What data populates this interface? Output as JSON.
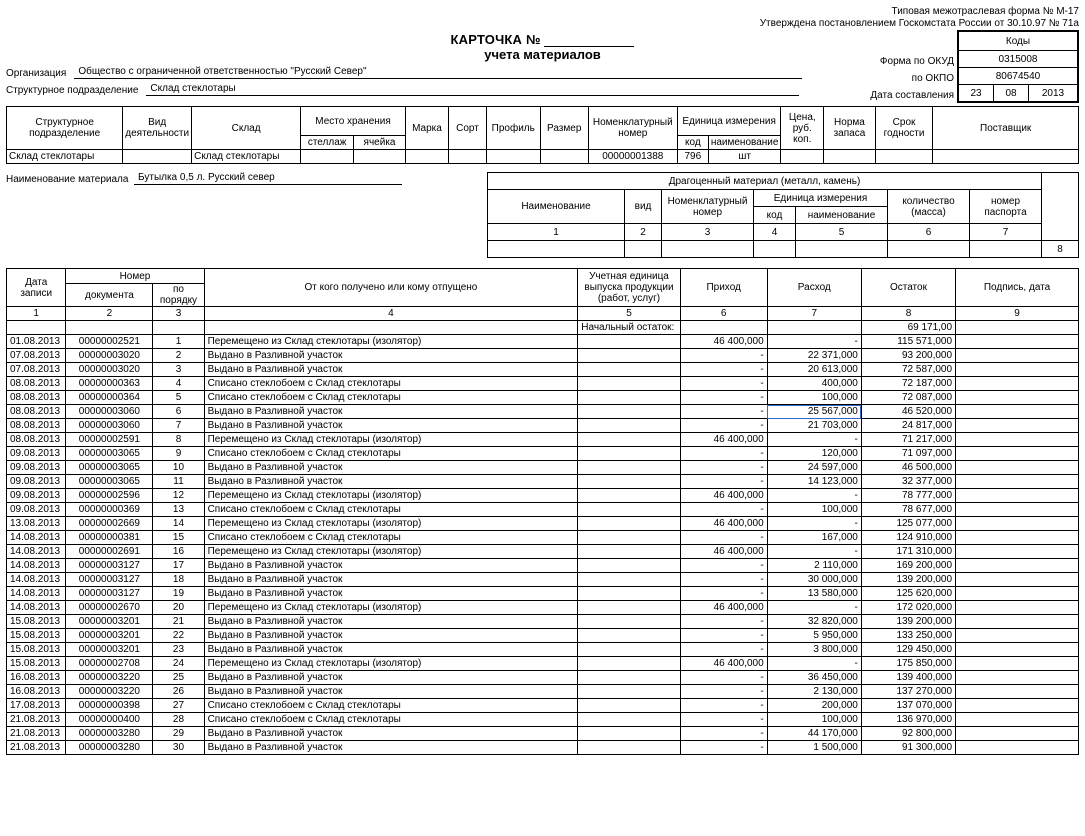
{
  "top_right": {
    "l1": "Типовая межотраслевая форма № М-17",
    "l2": "Утверждена постановлением Госкомстата России от 30.10.97 № 71а"
  },
  "title": {
    "l1a": "КАРТОЧКА №",
    "l2": "учета материалов"
  },
  "codes": {
    "hdr": "Коды",
    "okud": "0315008",
    "okpo": "80674540",
    "labels": {
      "l1": "Форма по ОКУД",
      "l2": "по ОКПО",
      "l3": "Дата составления"
    },
    "date": {
      "d": "23",
      "m": "08",
      "y": "2013"
    }
  },
  "org": {
    "label": "Организация",
    "value": "Общество с ограниченной  ответственностью  \"Русский Север\""
  },
  "struct": {
    "label": "Структурное подразделение",
    "value": "Склад стеклотары"
  },
  "t1": {
    "h": {
      "c1": "Структурное подразделение",
      "c2": "Вид деятельности",
      "c3": "Склад",
      "c4": "Место хранения",
      "c4a": "стеллаж",
      "c4b": "ячейка",
      "c5": "Марка",
      "c6": "Сорт",
      "c7": "Профиль",
      "c8": "Размер",
      "c9": "Номенклатурный номер",
      "c10": "Единица измерения",
      "c10a": "код",
      "c10b": "наименование",
      "c11": "Цена, руб. коп.",
      "c12": "Норма запаса",
      "c13": "Срок годности",
      "c14": "Поставщик"
    },
    "r": {
      "c1": "Склад стеклотары",
      "c3": "Склад стеклотары",
      "c9": "00000001388",
      "c10a": "796",
      "c10b": "шт"
    }
  },
  "mat": {
    "label": "Наименование материала",
    "value": "Бутылка 0,5 л. Русский север"
  },
  "t2": {
    "top": "Драгоценный материал (металл, камень)",
    "h1": "Наименование",
    "h2": "вид",
    "h3": "Номенклатурный номер",
    "h4": "Единица измерения",
    "h4a": "код",
    "h4b": "наименование",
    "h5": "количество (масса)",
    "h6": "номер паспорта",
    "n1": "1",
    "n2": "2",
    "n3": "3",
    "n4": "4",
    "n5": "5",
    "n6": "6",
    "n7": "7",
    "n8": "8"
  },
  "main": {
    "h": {
      "c1": "Дата записи",
      "c2": "Номер",
      "c2a": "документа",
      "c2b": "по порядку",
      "c3": "От кого получено или кому отпущено",
      "c4": "Учетная единица выпуска продукции (работ, услуг)",
      "c5": "Приход",
      "c6": "Расход",
      "c7": "Остаток",
      "c8": "Подпись, дата"
    },
    "nums": [
      "1",
      "2",
      "3",
      "4",
      "5",
      "6",
      "7",
      "8",
      "9"
    ],
    "initial": {
      "label": "Начальный остаток:",
      "ost": "69 171,00"
    },
    "rows": [
      {
        "d": "01.08.2013",
        "doc": "00000002521",
        "n": "1",
        "desc": "Перемещено из Склад стеклотары (изолятор)",
        "in": "46 400,000",
        "out": "-",
        "ost": "115 571,000"
      },
      {
        "d": "07.08.2013",
        "doc": "00000003020",
        "n": "2",
        "desc": "Выдано в Разливной участок",
        "in": "-",
        "out": "22 371,000",
        "ost": "93 200,000"
      },
      {
        "d": "07.08.2013",
        "doc": "00000003020",
        "n": "3",
        "desc": "Выдано в Разливной участок",
        "in": "-",
        "out": "20 613,000",
        "ost": "72 587,000"
      },
      {
        "d": "08.08.2013",
        "doc": "00000000363",
        "n": "4",
        "desc": "Списано стеклобоем с Склад стеклотары",
        "in": "-",
        "out": "400,000",
        "ost": "72 187,000"
      },
      {
        "d": "08.08.2013",
        "doc": "00000000364",
        "n": "5",
        "desc": "Списано стеклобоем с Склад стеклотары",
        "in": "-",
        "out": "100,000",
        "ost": "72 087,000"
      },
      {
        "d": "08.08.2013",
        "doc": "00000003060",
        "n": "6",
        "desc": "Выдано в Разливной участок",
        "in": "-",
        "out": "25 567,000",
        "ost": "46 520,000",
        "hl": true
      },
      {
        "d": "08.08.2013",
        "doc": "00000003060",
        "n": "7",
        "desc": "Выдано в Разливной участок",
        "in": "-",
        "out": "21 703,000",
        "ost": "24 817,000"
      },
      {
        "d": "08.08.2013",
        "doc": "00000002591",
        "n": "8",
        "desc": "Перемещено из Склад стеклотары (изолятор)",
        "in": "46 400,000",
        "out": "-",
        "ost": "71 217,000"
      },
      {
        "d": "09.08.2013",
        "doc": "00000003065",
        "n": "9",
        "desc": "Списано стеклобоем с Склад стеклотары",
        "in": "-",
        "out": "120,000",
        "ost": "71 097,000"
      },
      {
        "d": "09.08.2013",
        "doc": "00000003065",
        "n": "10",
        "desc": "Выдано в Разливной участок",
        "in": "-",
        "out": "24 597,000",
        "ost": "46 500,000"
      },
      {
        "d": "09.08.2013",
        "doc": "00000003065",
        "n": "11",
        "desc": "Выдано в Разливной участок",
        "in": "-",
        "out": "14 123,000",
        "ost": "32 377,000"
      },
      {
        "d": "09.08.2013",
        "doc": "00000002596",
        "n": "12",
        "desc": "Перемещено из Склад стеклотары (изолятор)",
        "in": "46 400,000",
        "out": "-",
        "ost": "78 777,000"
      },
      {
        "d": "09.08.2013",
        "doc": "00000000369",
        "n": "13",
        "desc": "Списано стеклобоем с Склад стеклотары",
        "in": "-",
        "out": "100,000",
        "ost": "78 677,000"
      },
      {
        "d": "13.08.2013",
        "doc": "00000002669",
        "n": "14",
        "desc": "Перемещено из Склад стеклотары (изолятор)",
        "in": "46 400,000",
        "out": "-",
        "ost": "125 077,000"
      },
      {
        "d": "14.08.2013",
        "doc": "00000000381",
        "n": "15",
        "desc": "Списано стеклобоем с Склад стеклотары",
        "in": "-",
        "out": "167,000",
        "ost": "124 910,000"
      },
      {
        "d": "14.08.2013",
        "doc": "00000002691",
        "n": "16",
        "desc": "Перемещено из Склад стеклотары (изолятор)",
        "in": "46 400,000",
        "out": "-",
        "ost": "171 310,000"
      },
      {
        "d": "14.08.2013",
        "doc": "00000003127",
        "n": "17",
        "desc": "Выдано в Разливной участок",
        "in": "-",
        "out": "2 110,000",
        "ost": "169 200,000"
      },
      {
        "d": "14.08.2013",
        "doc": "00000003127",
        "n": "18",
        "desc": "Выдано в Разливной участок",
        "in": "-",
        "out": "30 000,000",
        "ost": "139 200,000"
      },
      {
        "d": "14.08.2013",
        "doc": "00000003127",
        "n": "19",
        "desc": "Выдано в Разливной участок",
        "in": "-",
        "out": "13 580,000",
        "ost": "125 620,000"
      },
      {
        "d": "14.08.2013",
        "doc": "00000002670",
        "n": "20",
        "desc": "Перемещено из Склад стеклотары (изолятор)",
        "in": "46 400,000",
        "out": "-",
        "ost": "172 020,000"
      },
      {
        "d": "15.08.2013",
        "doc": "00000003201",
        "n": "21",
        "desc": "Выдано в Разливной участок",
        "in": "-",
        "out": "32 820,000",
        "ost": "139 200,000"
      },
      {
        "d": "15.08.2013",
        "doc": "00000003201",
        "n": "22",
        "desc": "Выдано в Разливной участок",
        "in": "-",
        "out": "5 950,000",
        "ost": "133 250,000"
      },
      {
        "d": "15.08.2013",
        "doc": "00000003201",
        "n": "23",
        "desc": "Выдано в Разливной участок",
        "in": "-",
        "out": "3 800,000",
        "ost": "129 450,000"
      },
      {
        "d": "15.08.2013",
        "doc": "00000002708",
        "n": "24",
        "desc": "Перемещено из Склад стеклотары (изолятор)",
        "in": "46 400,000",
        "out": "-",
        "ost": "175 850,000"
      },
      {
        "d": "16.08.2013",
        "doc": "00000003220",
        "n": "25",
        "desc": "Выдано в Разливной участок",
        "in": "-",
        "out": "36 450,000",
        "ost": "139 400,000"
      },
      {
        "d": "16.08.2013",
        "doc": "00000003220",
        "n": "26",
        "desc": "Выдано в Разливной участок",
        "in": "-",
        "out": "2 130,000",
        "ost": "137 270,000"
      },
      {
        "d": "17.08.2013",
        "doc": "00000000398",
        "n": "27",
        "desc": "Списано стеклобоем с Склад стеклотары",
        "in": "-",
        "out": "200,000",
        "ost": "137 070,000"
      },
      {
        "d": "21.08.2013",
        "doc": "00000000400",
        "n": "28",
        "desc": "Списано стеклобоем с Склад стеклотары",
        "in": "-",
        "out": "100,000",
        "ost": "136 970,000"
      },
      {
        "d": "21.08.2013",
        "doc": "00000003280",
        "n": "29",
        "desc": "Выдано в Разливной участок",
        "in": "-",
        "out": "44 170,000",
        "ost": "92 800,000"
      },
      {
        "d": "21.08.2013",
        "doc": "00000003280",
        "n": "30",
        "desc": "Выдано в Разливной участок",
        "in": "-",
        "out": "1 500,000",
        "ost": "91 300,000"
      }
    ]
  }
}
